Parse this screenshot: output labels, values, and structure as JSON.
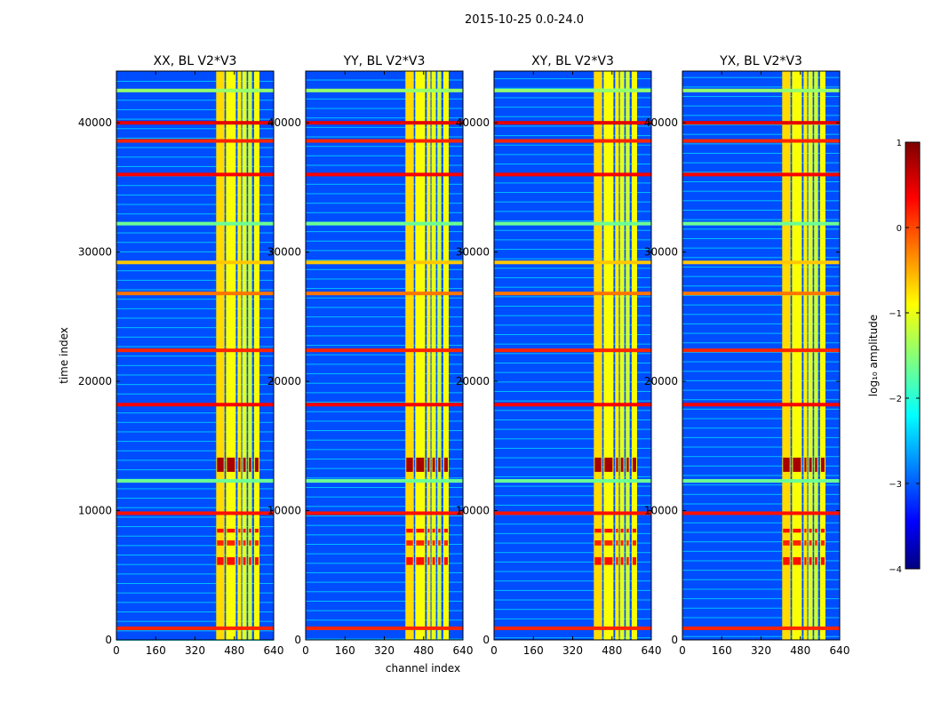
{
  "chart_data": {
    "type": "heatmap",
    "title": "2015-10-25 0.0-24.0",
    "xlabel": "channel index",
    "ylabel": "time index",
    "xlim": [
      0,
      640
    ],
    "ylim": [
      0,
      44000
    ],
    "x_ticks": [
      "0",
      "160",
      "320",
      "480",
      "640"
    ],
    "x_tick_values": [
      0,
      160,
      320,
      480,
      640
    ],
    "y_ticks": [
      "0",
      "10000",
      "20000",
      "30000",
      "40000"
    ],
    "y_tick_values": [
      0,
      10000,
      20000,
      30000,
      40000
    ],
    "panels": [
      {
        "title": "XX, BL V2*V3"
      },
      {
        "title": "YY, BL V2*V3"
      },
      {
        "title": "XY, BL V2*V3"
      },
      {
        "title": "YX, BL V2*V3"
      }
    ],
    "colorbar": {
      "label": "log₁₀ amplitude",
      "ticks": [
        "1",
        "0",
        "−1",
        "−2",
        "−3",
        "−4"
      ],
      "tick_values": [
        1,
        0,
        -1,
        -2,
        -3,
        -4
      ],
      "range": [
        -4,
        1
      ],
      "colormap": "jet"
    },
    "background_level": -3,
    "bright_channel_bands": [
      {
        "start": 406,
        "end": 440,
        "level": -0.7
      },
      {
        "start": 446,
        "end": 486,
        "level": -0.9
      },
      {
        "start": 493,
        "end": 508,
        "level": -0.8
      },
      {
        "start": 512,
        "end": 530,
        "level": -1.0
      },
      {
        "start": 536,
        "end": 552,
        "level": -1.1
      },
      {
        "start": 560,
        "end": 582,
        "level": -0.9
      }
    ],
    "rfi_time_rows": [
      {
        "t": 900,
        "level": 0.2
      },
      {
        "t": 9800,
        "level": 0.3
      },
      {
        "t": 12300,
        "level": -1.6
      },
      {
        "t": 18200,
        "level": 0.4
      },
      {
        "t": 22400,
        "level": 0.2
      },
      {
        "t": 26800,
        "level": -0.2
      },
      {
        "t": 29200,
        "level": -0.6
      },
      {
        "t": 32200,
        "level": -1.6
      },
      {
        "t": 36000,
        "level": 0.4
      },
      {
        "t": 38600,
        "level": 0.2
      },
      {
        "t": 40000,
        "level": 0.5
      },
      {
        "t": 42500,
        "level": -1.4
      }
    ],
    "strong_blocks": [
      {
        "t_start": 13000,
        "t_end": 14100,
        "level": 0.8
      },
      {
        "t_start": 5800,
        "t_end": 6400,
        "level": 0.3
      },
      {
        "t_start": 7300,
        "t_end": 7700,
        "level": 0.2
      },
      {
        "t_start": 8300,
        "t_end": 8600,
        "level": 0.3
      }
    ]
  }
}
